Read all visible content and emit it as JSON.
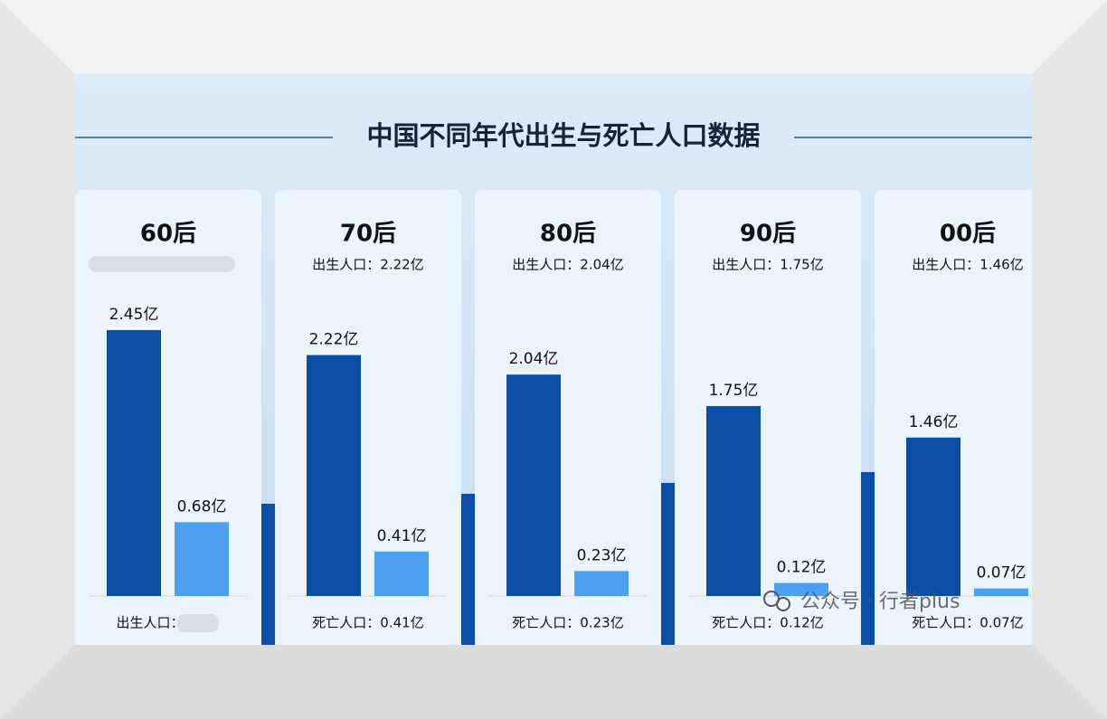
{
  "title": "中国不同年代出生与死亡人口数据",
  "watermark": "公众号 · 行者plus",
  "chart_data": [
    {
      "type": "bar",
      "title": "60后",
      "categories": [
        null,
        null
      ],
      "values": [
        2.45,
        0.68
      ],
      "value_labels": [
        "2.45亿",
        "0.68亿"
      ],
      "colors": [
        "#0b4ea6",
        "#4d9ff0"
      ],
      "note": "出生人口："
    },
    {
      "type": "bar",
      "title": "70后",
      "subtitle": "出生人口：2.22亿",
      "categories": [
        null,
        null
      ],
      "values": [
        2.22,
        0.41
      ],
      "value_labels": [
        "2.22亿",
        "0.41亿"
      ],
      "colors": [
        "#0b4ea6",
        "#4d9ff0"
      ],
      "note": "死亡人口：0.41亿"
    },
    {
      "type": "bar",
      "title": "80后",
      "subtitle": "出生人口：2.04亿",
      "categories": [
        null,
        null
      ],
      "values": [
        2.04,
        0.23
      ],
      "value_labels": [
        "2.04亿",
        "0.23亿"
      ],
      "colors": [
        "#0b4ea6",
        "#4d9ff0"
      ],
      "note": "死亡人口：0.23亿"
    },
    {
      "type": "bar",
      "title": "90后",
      "subtitle": "出生人口：1.75亿",
      "categories": [
        null,
        null
      ],
      "values": [
        1.75,
        0.12
      ],
      "value_labels": [
        "1.75亿",
        "0.12亿"
      ],
      "colors": [
        "#0b4ea6",
        "#4d9ff0"
      ],
      "note": "死亡人口：0.12亿"
    },
    {
      "type": "bar",
      "title": "00后",
      "subtitle": "出生人口：1.46亿",
      "categories": [
        null,
        null
      ],
      "values": [
        1.46,
        0.07
      ],
      "value_labels": [
        "1.46亿",
        "0.07亿"
      ],
      "colors": [
        "#0b4ea6",
        "#4d9ff0"
      ],
      "note": "死亡人口：0.07亿"
    }
  ]
}
